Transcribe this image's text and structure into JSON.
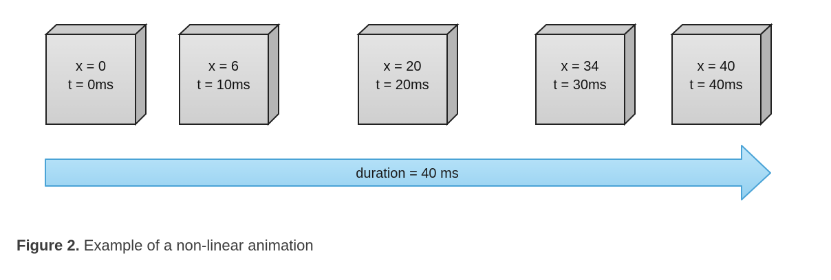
{
  "diagram": {
    "frames": [
      {
        "x_label": "x = 0",
        "t_label": "t = 0ms"
      },
      {
        "x_label": "x = 6",
        "t_label": "t = 10ms"
      },
      {
        "x_label": "x = 20",
        "t_label": "t = 20ms"
      },
      {
        "x_label": "x = 34",
        "t_label": "t = 30ms"
      },
      {
        "x_label": "x = 40",
        "t_label": "t = 40ms"
      }
    ],
    "duration_label": "duration = 40 ms",
    "colors": {
      "box_front": "#d9d9d9",
      "box_side": "#b8b8b8",
      "box_top": "#c8c8c8",
      "box_stroke": "#222222",
      "arrow_fill": "#a9dcf5",
      "arrow_stroke": "#4aa3d6"
    }
  },
  "caption": {
    "label": "Figure 2.",
    "text": " Example of a non-linear animation"
  }
}
